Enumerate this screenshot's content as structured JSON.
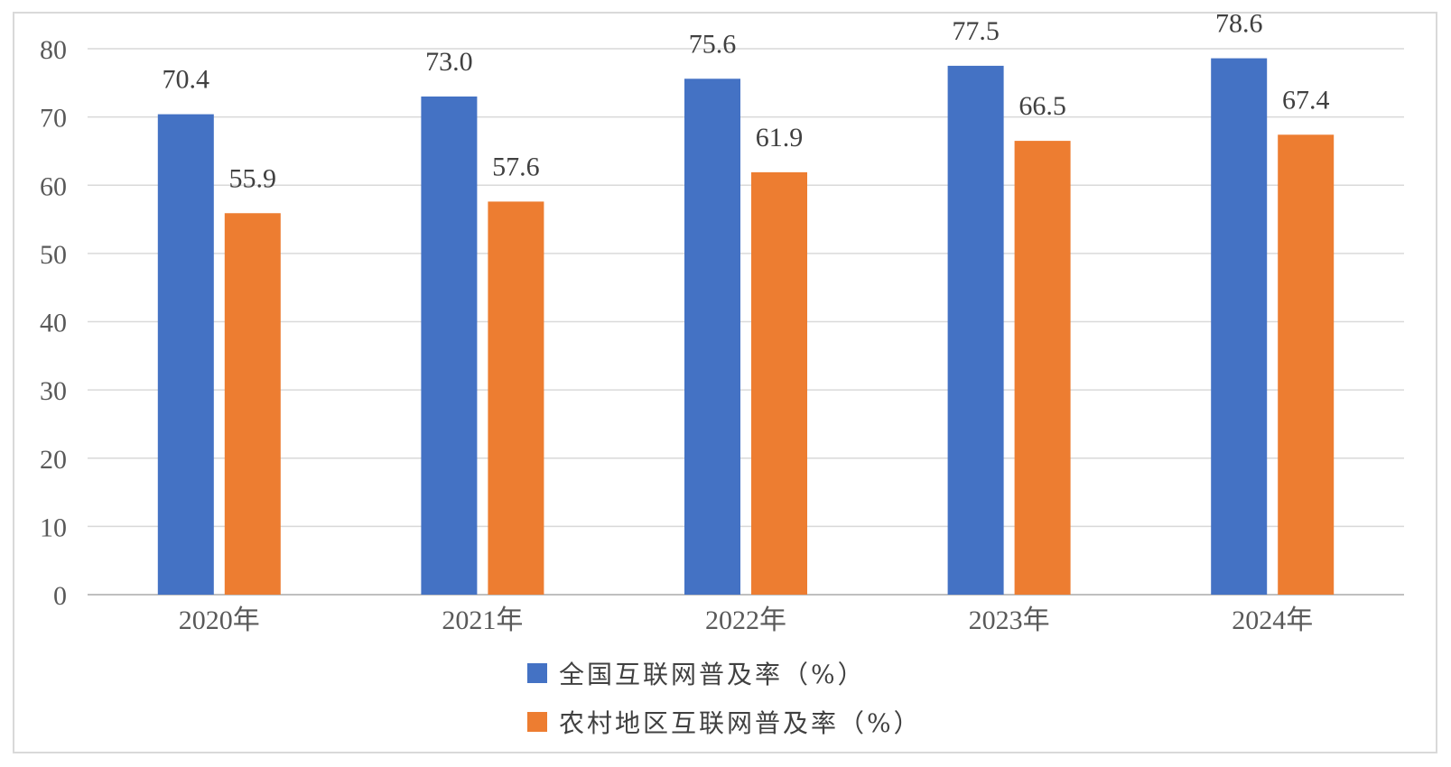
{
  "chart_data": {
    "type": "bar",
    "categories": [
      "2020年",
      "2021年",
      "2022年",
      "2023年",
      "2024年"
    ],
    "series": [
      {
        "name": "全国互联网普及率（%）",
        "color": "#4472c4",
        "values": [
          70.4,
          73.0,
          75.6,
          77.5,
          78.6
        ]
      },
      {
        "name": "农村地区互联网普及率（%）",
        "color": "#ed7d31",
        "values": [
          55.9,
          57.6,
          61.9,
          66.5,
          67.4
        ]
      }
    ],
    "value_labels": [
      [
        "70.4",
        "73.0",
        "75.6",
        "77.5",
        "78.6"
      ],
      [
        "55.9",
        "57.6",
        "61.9",
        "66.5",
        "67.4"
      ]
    ],
    "yticks": [
      0,
      10,
      20,
      30,
      40,
      50,
      60,
      70,
      80
    ],
    "ylim": [
      0,
      80
    ],
    "grid": true,
    "legend_position": "bottom"
  }
}
